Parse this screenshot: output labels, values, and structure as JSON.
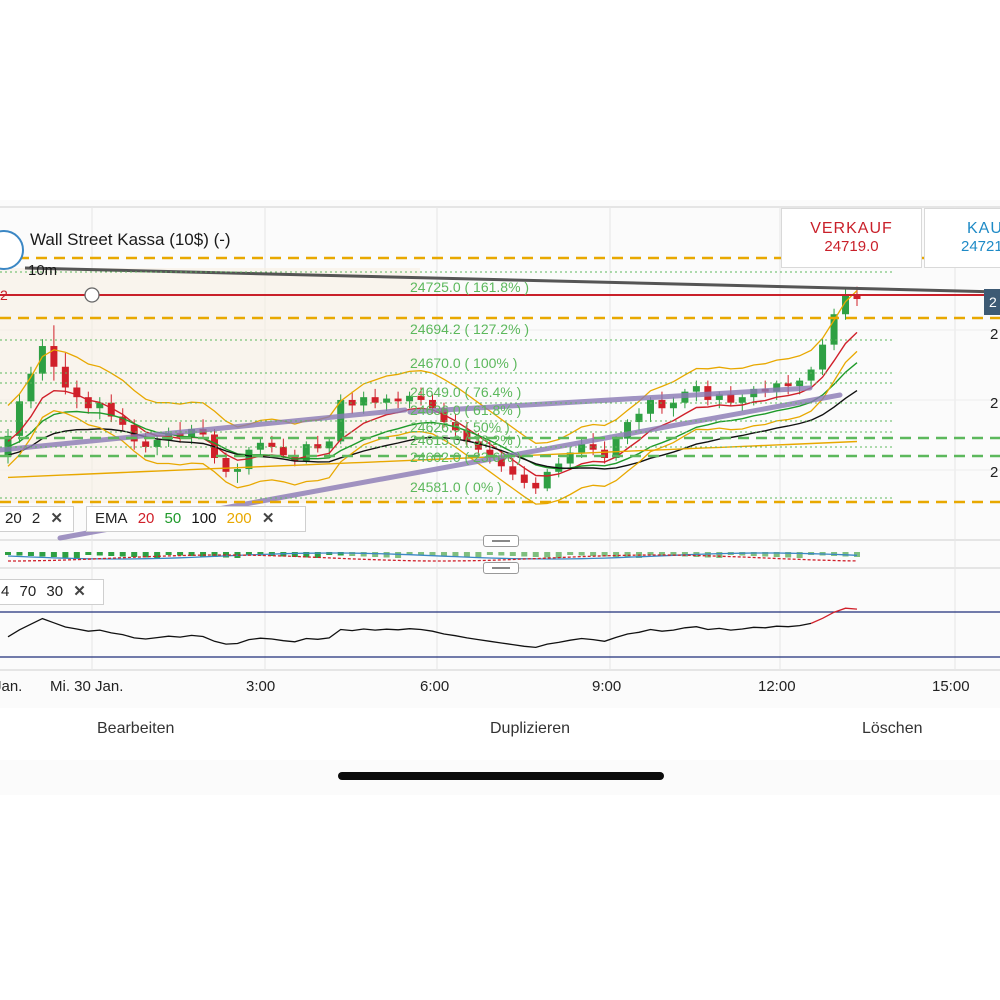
{
  "header": {
    "title": "Wall Street Kassa (10$) (-)",
    "interval": "10m"
  },
  "quotes": {
    "sell_label": "VERKAUF",
    "sell_price": "24719.0",
    "buy_label": "KAUF",
    "buy_price": "24721"
  },
  "price_tag": "2",
  "price_tag_left": "2",
  "right_axis_labels": [
    "2",
    "2",
    "2"
  ],
  "indicators": {
    "bb": {
      "values": [
        "20",
        "2"
      ]
    },
    "ema": {
      "label": "EMA",
      "periods": [
        "20",
        "50",
        "100",
        "200"
      ],
      "colors": [
        "#d0202a",
        "#1e9a2a",
        "#111111",
        "#e8a800"
      ]
    },
    "rsi": {
      "values": [
        "4",
        "70",
        "30"
      ]
    },
    "close_glyph": "✕"
  },
  "fib_labels": [
    "24725.0 ( 161.8% )",
    "24694.2 ( 127.2% )",
    "24670.0 ( 100% )",
    "24649.0 ( 76.4% )",
    "24636.0 ( 61.8% )",
    "24626.5 ( 50% )",
    "24615.0 ( 38.2% )",
    "24602.0 ( 23.6% )",
    "24581.0 ( 0% )"
  ],
  "x_axis": [
    "Jan.",
    "Mi. 30 Jan.",
    "3:00",
    "6:00",
    "9:00",
    "12:00",
    "15:00"
  ],
  "bottom_bar": {
    "edit": "Bearbeiten",
    "duplicate": "Duplizieren",
    "delete": "Löschen"
  },
  "colors": {
    "up": "#2ea043",
    "down": "#d0202a",
    "fib": "#5cb85c",
    "bollinger": "#e8a800",
    "trendline": "#8a7ab5",
    "sell": "#c9202a",
    "buy": "#1e8ac6"
  },
  "chart_data": {
    "type": "candlestick",
    "instrument": "Wall Street Kassa (10$) (-)",
    "interval": "10m",
    "x_labels": [
      "Jan.",
      "Mi. 30 Jan.",
      "3:00",
      "6:00",
      "9:00",
      "12:00",
      "15:00"
    ],
    "ohlc": [
      [
        24605,
        24625,
        24600,
        24620
      ],
      [
        24620,
        24650,
        24615,
        24645
      ],
      [
        24645,
        24670,
        24640,
        24665
      ],
      [
        24665,
        24690,
        24660,
        24685
      ],
      [
        24685,
        24700,
        24660,
        24670
      ],
      [
        24670,
        24680,
        24650,
        24655
      ],
      [
        24655,
        24660,
        24640,
        24648
      ],
      [
        24648,
        24652,
        24636,
        24640
      ],
      [
        24640,
        24648,
        24632,
        24644
      ],
      [
        24644,
        24650,
        24630,
        24634
      ],
      [
        24634,
        24640,
        24624,
        24628
      ],
      [
        24628,
        24632,
        24610,
        24616
      ],
      [
        24616,
        24622,
        24608,
        24612
      ],
      [
        24612,
        24620,
        24606,
        24617
      ],
      [
        24617,
        24626,
        24612,
        24622
      ],
      [
        24622,
        24630,
        24615,
        24619
      ],
      [
        24619,
        24628,
        24614,
        24625
      ],
      [
        24625,
        24632,
        24618,
        24621
      ],
      [
        24621,
        24625,
        24600,
        24604
      ],
      [
        24604,
        24608,
        24590,
        24594
      ],
      [
        24594,
        24600,
        24586,
        24596
      ],
      [
        24596,
        24612,
        24592,
        24610
      ],
      [
        24610,
        24618,
        24605,
        24615
      ],
      [
        24615,
        24620,
        24608,
        24612
      ],
      [
        24612,
        24618,
        24604,
        24606
      ],
      [
        24606,
        24610,
        24598,
        24602
      ],
      [
        24602,
        24616,
        24600,
        24614
      ],
      [
        24614,
        24620,
        24608,
        24611
      ],
      [
        24611,
        24618,
        24606,
        24616
      ],
      [
        24616,
        24650,
        24614,
        24646
      ],
      [
        24646,
        24652,
        24636,
        24642
      ],
      [
        24642,
        24652,
        24636,
        24648
      ],
      [
        24648,
        24654,
        24640,
        24644
      ],
      [
        24644,
        24650,
        24638,
        24647
      ],
      [
        24647,
        24652,
        24640,
        24645
      ],
      [
        24645,
        24652,
        24640,
        24649
      ],
      [
        24649,
        24655,
        24642,
        24646
      ],
      [
        24646,
        24650,
        24636,
        24640
      ],
      [
        24640,
        24644,
        24626,
        24630
      ],
      [
        24630,
        24636,
        24620,
        24624
      ],
      [
        24624,
        24630,
        24612,
        24616
      ],
      [
        24616,
        24622,
        24606,
        24610
      ],
      [
        24610,
        24616,
        24600,
        24604
      ],
      [
        24604,
        24610,
        24594,
        24598
      ],
      [
        24598,
        24604,
        24588,
        24592
      ],
      [
        24592,
        24598,
        24582,
        24586
      ],
      [
        24586,
        24590,
        24578,
        24582
      ],
      [
        24582,
        24596,
        24580,
        24594
      ],
      [
        24594,
        24604,
        24590,
        24600
      ],
      [
        24600,
        24612,
        24596,
        24608
      ],
      [
        24608,
        24618,
        24604,
        24614
      ],
      [
        24614,
        24622,
        24606,
        24610
      ],
      [
        24610,
        24616,
        24600,
        24604
      ],
      [
        24604,
        24620,
        24602,
        24618
      ],
      [
        24618,
        24632,
        24614,
        24630
      ],
      [
        24630,
        24640,
        24624,
        24636
      ],
      [
        24636,
        24648,
        24630,
        24646
      ],
      [
        24646,
        24652,
        24636,
        24640
      ],
      [
        24640,
        24648,
        24634,
        24644
      ],
      [
        24644,
        24654,
        24640,
        24652
      ],
      [
        24652,
        24660,
        24645,
        24656
      ],
      [
        24656,
        24660,
        24642,
        24646
      ],
      [
        24646,
        24652,
        24640,
        24650
      ],
      [
        24650,
        24656,
        24642,
        24644
      ],
      [
        24644,
        24650,
        24638,
        24648
      ],
      [
        24648,
        24656,
        24642,
        24654
      ],
      [
        24654,
        24660,
        24648,
        24652
      ],
      [
        24652,
        24660,
        24646,
        24658
      ],
      [
        24658,
        24664,
        24650,
        24656
      ],
      [
        24656,
        24662,
        24650,
        24660
      ],
      [
        24660,
        24670,
        24656,
        24668
      ],
      [
        24668,
        24690,
        24664,
        24686
      ],
      [
        24686,
        24712,
        24682,
        24708
      ],
      [
        24708,
        24726,
        24704,
        24722
      ],
      [
        24722,
        24728,
        24714,
        24719
      ]
    ],
    "fibonacci_levels": [
      {
        "price": 24725.0,
        "pct": "161.8%"
      },
      {
        "price": 24694.2,
        "pct": "127.2%"
      },
      {
        "price": 24670.0,
        "pct": "100%"
      },
      {
        "price": 24649.0,
        "pct": "76.4%"
      },
      {
        "price": 24636.0,
        "pct": "61.8%"
      },
      {
        "price": 24626.5,
        "pct": "50%"
      },
      {
        "price": 24615.0,
        "pct": "38.2%"
      },
      {
        "price": 24602.0,
        "pct": "23.6%"
      },
      {
        "price": 24581.0,
        "pct": "0%"
      }
    ],
    "ema_periods": [
      20,
      50,
      100,
      200
    ],
    "rsi_levels": [
      70,
      30
    ],
    "grid": true
  }
}
